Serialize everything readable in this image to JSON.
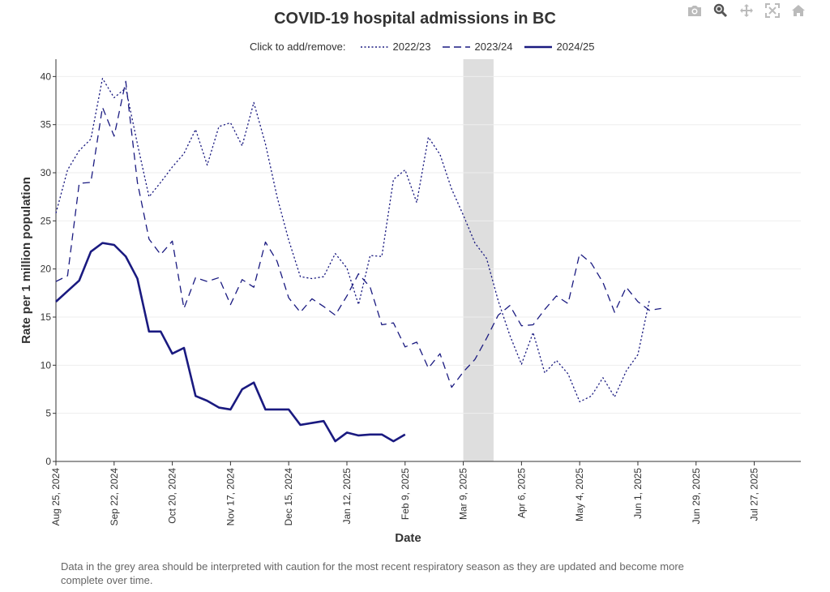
{
  "title": "COVID-19 hospital admissions in BC",
  "legend": {
    "hint": "Click to add/remove:",
    "items": [
      "2022/23",
      "2023/24",
      "2024/25"
    ]
  },
  "note": "Data in the grey area should be interpreted with caution for the most recent respiratory season as they are updated and become more complete over time.",
  "modebar": [
    "camera-icon",
    "zoom-icon",
    "pan-icon",
    "autoscale-icon",
    "home-icon"
  ],
  "colors": {
    "line": "#1a1a80",
    "shade": "#dedede",
    "grid": "#eeeeee"
  },
  "chart_data": {
    "type": "line",
    "title": "COVID-19 hospital admissions in BC",
    "xlabel": "Date",
    "ylabel": "Rate per 1 million population",
    "ylim": [
      0,
      41.8
    ],
    "yticks": [
      0,
      5,
      10,
      15,
      20,
      25,
      30,
      35,
      40
    ],
    "xlim": [
      0,
      64
    ],
    "xticks": [
      {
        "x": 0,
        "label": "Aug 25, 2024"
      },
      {
        "x": 5,
        "label": "Sep 22, 2024"
      },
      {
        "x": 10,
        "label": "Oct 20, 2024"
      },
      {
        "x": 15,
        "label": "Nov 17, 2024"
      },
      {
        "x": 20,
        "label": "Dec 15, 2024"
      },
      {
        "x": 25,
        "label": "Jan 12, 2025"
      },
      {
        "x": 30,
        "label": "Feb 9, 2025"
      },
      {
        "x": 35,
        "label": "Mar 9, 2025"
      },
      {
        "x": 40,
        "label": "Apr 6, 2025"
      },
      {
        "x": 45,
        "label": "May 4, 2025"
      },
      {
        "x": 50,
        "label": "Jun 1, 2025"
      },
      {
        "x": 55,
        "label": "Jun 29, 2025"
      },
      {
        "x": 60,
        "label": "Jul 27, 2025"
      }
    ],
    "x_unit": "weeks",
    "shaded_region": {
      "x0": 35,
      "x1": 37.6
    },
    "grid": true,
    "legend_position": "top",
    "series": [
      {
        "name": "2022/23",
        "dash": "dot",
        "values": [
          25.8,
          30.3,
          32.3,
          33.5,
          39.8,
          37.8,
          38.8,
          33.0,
          27.5,
          29.0,
          30.6,
          32.0,
          34.5,
          30.8,
          34.8,
          35.2,
          32.8,
          37.3,
          33.0,
          27.5,
          23.0,
          19.2,
          19.0,
          19.2,
          21.6,
          20.1,
          16.3,
          21.4,
          21.3,
          29.3,
          30.3,
          26.9,
          33.7,
          31.9,
          28.3,
          25.6,
          22.7,
          21.1,
          16.7,
          13.1,
          10.1,
          13.4,
          9.2,
          10.5,
          9.1,
          6.2,
          6.8,
          8.7,
          6.7,
          9.4,
          11.1,
          16.8
        ]
      },
      {
        "name": "2023/24",
        "dash": "dash",
        "values": [
          18.7,
          19.3,
          28.9,
          29.0,
          36.8,
          33.8,
          39.5,
          29.0,
          23.1,
          21.5,
          22.9,
          15.9,
          19.1,
          18.7,
          19.1,
          16.3,
          18.9,
          18.1,
          22.8,
          20.8,
          17.0,
          15.5,
          16.9,
          16.1,
          15.2,
          17.2,
          19.5,
          18.1,
          14.2,
          14.4,
          11.9,
          12.4,
          9.7,
          11.2,
          7.7,
          9.3,
          10.6,
          12.8,
          15.2,
          16.2,
          14.1,
          14.2,
          15.8,
          17.2,
          16.4,
          21.6,
          20.6,
          18.6,
          15.5,
          18.1,
          16.6,
          15.7,
          15.9
        ]
      },
      {
        "name": "2024/25",
        "dash": "solid",
        "values": [
          16.6,
          17.7,
          18.8,
          21.8,
          22.7,
          22.5,
          21.3,
          19.0,
          13.5,
          13.5,
          11.2,
          11.8,
          6.8,
          6.3,
          5.6,
          5.4,
          7.5,
          8.2,
          5.4,
          5.4,
          5.4,
          3.8,
          4.0,
          4.2,
          2.1,
          3.0,
          2.7,
          2.8,
          2.8,
          2.1,
          2.8
        ]
      }
    ]
  }
}
